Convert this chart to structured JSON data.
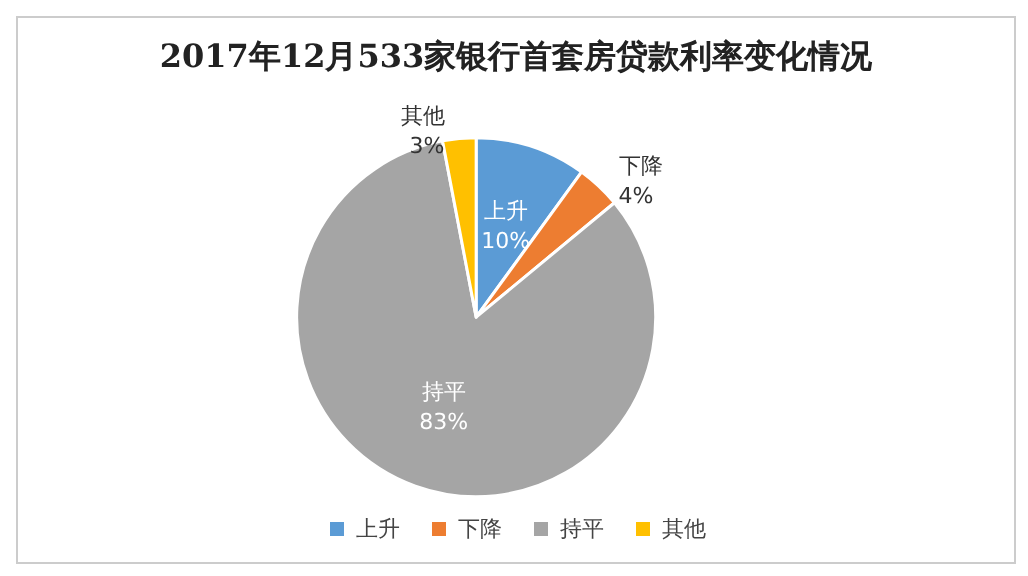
{
  "chart_data": {
    "type": "pie",
    "title": "2017年12月533家银行首套房贷款利率变化情况",
    "categories": [
      "上升",
      "下降",
      "持平",
      "其他"
    ],
    "values": [
      10,
      4,
      83,
      3
    ],
    "colors": [
      "#5b9bd5",
      "#ed7d31",
      "#a5a5a5",
      "#ffc000"
    ],
    "value_labels": [
      "10%",
      "4%",
      "83%",
      "3%"
    ],
    "legend": "bottom"
  }
}
